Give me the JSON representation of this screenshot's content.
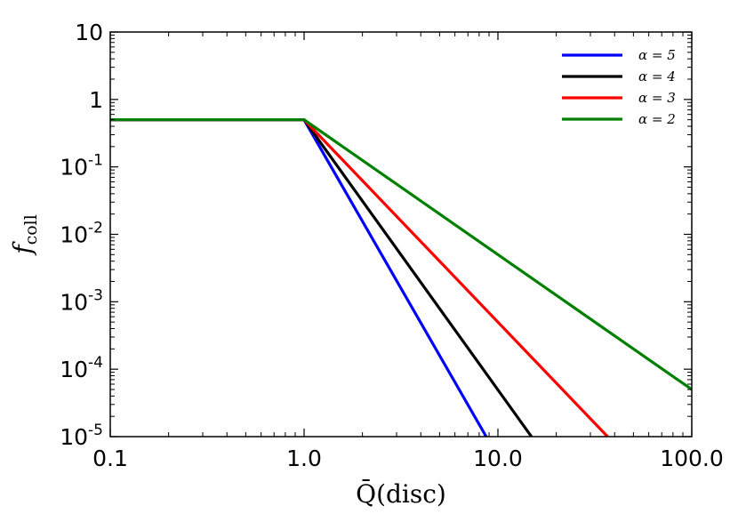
{
  "chart_data": {
    "type": "line",
    "title": "",
    "xlabel": "Q̄(disc)",
    "ylabel": "f_coll",
    "xscale": "log",
    "yscale": "log",
    "xlim": [
      0.1,
      100
    ],
    "ylim": [
      1e-05,
      10
    ],
    "grid": false,
    "legend_position": "top-right",
    "x_tick_labels": [
      "0.1",
      "1.0",
      "10.0",
      "100.0"
    ],
    "y_tick_labels": [
      {
        "base": "10",
        "exp": "-5"
      },
      {
        "base": "10",
        "exp": "-4"
      },
      {
        "base": "10",
        "exp": "-3"
      },
      {
        "base": "10",
        "exp": "-2"
      },
      {
        "base": "10",
        "exp": "-1"
      },
      {
        "base": "1",
        "exp": ""
      },
      {
        "base": "10",
        "exp": ""
      }
    ],
    "series": [
      {
        "name": "α = 5",
        "color": "#0000ff",
        "x": [
          0.1,
          1.0,
          8.7
        ],
        "y": [
          0.5,
          0.5,
          1e-05
        ]
      },
      {
        "name": "α = 4",
        "color": "#000000",
        "x": [
          0.1,
          1.0,
          14.9
        ],
        "y": [
          0.5,
          0.5,
          1e-05
        ]
      },
      {
        "name": "α = 3",
        "color": "#ff0000",
        "x": [
          0.1,
          1.0,
          36.8
        ],
        "y": [
          0.5,
          0.5,
          1e-05
        ]
      },
      {
        "name": "α = 2",
        "color": "#008000",
        "x": [
          0.1,
          1.0,
          100
        ],
        "y": [
          0.5,
          0.5,
          5e-05
        ]
      }
    ]
  }
}
